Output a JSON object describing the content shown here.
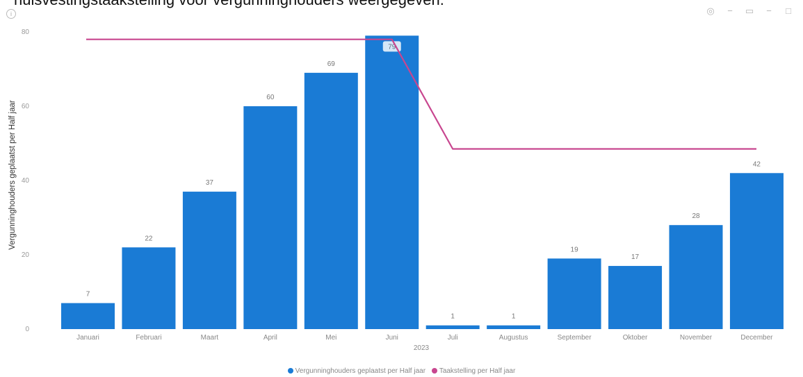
{
  "caption": "huisvestingstaakstelling voor vergunninghouders weergegeven.",
  "toolbar": {
    "icons": [
      "pin-icon",
      "copy-icon",
      "filter-icon",
      "focus-icon",
      "more-icon"
    ]
  },
  "chart_data": {
    "type": "bar",
    "categories": [
      "Januari",
      "Februari",
      "Maart",
      "April",
      "Mei",
      "Juni",
      "Juli",
      "Augustus",
      "September",
      "Oktober",
      "November",
      "December"
    ],
    "series": [
      {
        "name": "Vergunninghouders geplaatst per Half jaar",
        "type": "bar",
        "color": "#1a7bd5",
        "values": [
          7,
          22,
          37,
          60,
          69,
          79,
          1,
          1,
          19,
          17,
          28,
          42
        ]
      },
      {
        "name": "Taakstelling per Half jaar",
        "type": "line",
        "color": "#c8468f",
        "values": [
          78,
          78,
          78,
          78,
          78,
          78,
          48.5,
          48.5,
          48.5,
          48.5,
          48.5,
          48.5
        ]
      }
    ],
    "data_labels": [
      "7",
      "22",
      "37",
      "60",
      "69",
      "79",
      "1",
      "1",
      "19",
      "17",
      "28",
      "42"
    ],
    "ylabel": "Vergunninghouders geplaatst per Half jaar",
    "xlabel": "2023",
    "ylim": [
      0,
      80
    ],
    "yticks": [
      0,
      20,
      40,
      60,
      80
    ],
    "legend_position": "bottom-center",
    "grid": false
  }
}
